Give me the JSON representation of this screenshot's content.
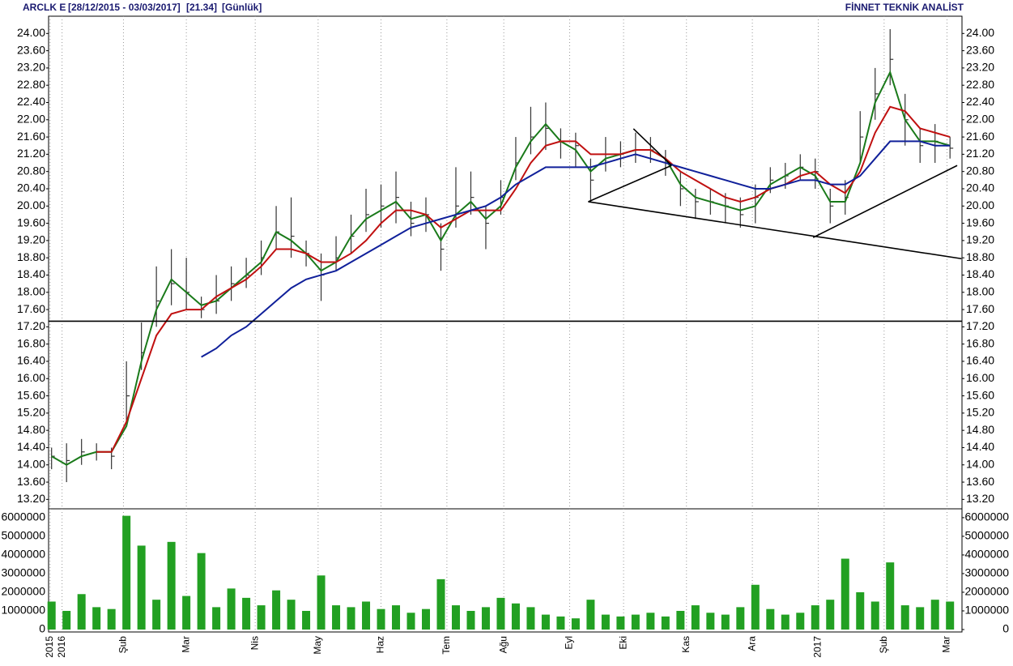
{
  "chart_data": {
    "type": "ohlc",
    "header": {
      "symbol": "ARCLK E",
      "range": "[28/12/2015 - 03/03/2017]",
      "last": "[21.34]",
      "period": "[Günlük]",
      "brand": "FİNNET TEKNİK ANALİST"
    },
    "x": [
      0,
      5,
      10,
      15,
      20,
      25,
      30,
      35,
      40,
      45,
      50,
      55,
      60,
      65,
      70,
      75,
      80,
      85,
      90,
      95,
      100,
      105,
      110,
      115,
      120,
      125,
      130,
      135,
      140,
      145,
      150,
      155,
      160,
      165,
      170,
      175,
      180,
      185,
      190,
      195,
      200,
      205,
      210,
      215,
      220,
      225,
      230,
      235,
      240,
      245,
      250,
      255,
      260,
      265,
      270,
      275,
      280,
      285,
      290,
      295,
      300
    ],
    "high": [
      14.4,
      14.5,
      14.6,
      14.5,
      14.4,
      16.4,
      17.3,
      18.6,
      19.0,
      18.8,
      17.9,
      18.4,
      18.6,
      18.8,
      19.2,
      20.0,
      20.2,
      19.2,
      18.9,
      19.3,
      19.8,
      20.4,
      20.5,
      20.8,
      20.1,
      20.2,
      19.6,
      20.9,
      20.8,
      20.0,
      20.6,
      21.6,
      22.3,
      22.4,
      21.8,
      21.7,
      21.1,
      21.6,
      21.5,
      21.7,
      21.6,
      21.3,
      20.8,
      20.4,
      20.4,
      20.3,
      20.2,
      20.5,
      20.9,
      21.0,
      21.2,
      21.1,
      20.4,
      20.6,
      22.2,
      23.2,
      24.1,
      22.6,
      21.8,
      21.9,
      21.6
    ],
    "low": [
      13.9,
      13.6,
      14.0,
      14.1,
      13.9,
      15.0,
      16.2,
      17.2,
      17.7,
      17.6,
      17.4,
      17.5,
      17.8,
      18.1,
      18.4,
      19.0,
      18.8,
      18.6,
      17.8,
      18.5,
      18.9,
      19.4,
      19.5,
      19.6,
      19.3,
      19.4,
      18.5,
      19.5,
      19.8,
      19.0,
      19.8,
      20.6,
      21.2,
      21.3,
      21.1,
      20.9,
      20.1,
      20.8,
      20.9,
      21.0,
      21.0,
      20.7,
      20.0,
      19.7,
      19.8,
      19.6,
      19.5,
      19.6,
      20.3,
      20.4,
      20.6,
      20.4,
      19.6,
      19.8,
      21.0,
      22.0,
      22.8,
      21.4,
      21.0,
      21.0,
      21.1
    ],
    "close": [
      14.2,
      14.1,
      14.3,
      14.3,
      14.2,
      15.6,
      16.6,
      17.8,
      18.2,
      18.0,
      17.6,
      17.8,
      18.2,
      18.4,
      18.8,
      19.4,
      19.3,
      18.9,
      18.4,
      18.8,
      19.3,
      19.8,
      20.0,
      20.2,
      19.6,
      19.8,
      19.0,
      20.0,
      20.2,
      19.6,
      20.2,
      21.0,
      21.6,
      21.8,
      21.5,
      21.4,
      20.6,
      21.2,
      21.2,
      21.3,
      21.3,
      21.0,
      20.4,
      20.1,
      20.1,
      20.0,
      19.8,
      20.2,
      20.6,
      20.7,
      20.9,
      20.8,
      20.0,
      20.2,
      21.6,
      22.6,
      23.4,
      22.0,
      21.4,
      21.5,
      21.34
    ],
    "bar_color": "#333333",
    "series": [
      {
        "color": "#1a7a1a",
        "values": [
          14.2,
          14.0,
          14.2,
          14.3,
          14.3,
          14.9,
          16.4,
          17.6,
          18.3,
          18.0,
          17.7,
          17.8,
          18.1,
          18.4,
          18.7,
          19.4,
          19.2,
          18.9,
          18.5,
          18.7,
          19.3,
          19.7,
          19.9,
          20.1,
          19.7,
          19.8,
          19.2,
          19.8,
          20.1,
          19.7,
          20.0,
          20.9,
          21.5,
          21.9,
          21.5,
          21.3,
          20.8,
          21.1,
          21.2,
          21.3,
          21.3,
          21.1,
          20.5,
          20.2,
          20.1,
          20.0,
          19.9,
          20.0,
          20.5,
          20.7,
          20.9,
          20.7,
          20.1,
          20.1,
          21.0,
          22.4,
          23.1,
          22.0,
          21.5,
          21.5,
          21.4
        ]
      },
      {
        "color": "#c01010",
        "values": [
          null,
          null,
          null,
          14.3,
          14.3,
          15.0,
          16.0,
          17.0,
          17.5,
          17.6,
          17.6,
          17.9,
          18.1,
          18.3,
          18.6,
          19.0,
          19.0,
          18.9,
          18.7,
          18.7,
          18.9,
          19.2,
          19.6,
          19.9,
          19.9,
          19.8,
          19.5,
          19.7,
          19.9,
          19.9,
          19.9,
          20.4,
          21.0,
          21.4,
          21.5,
          21.5,
          21.2,
          21.2,
          21.2,
          21.3,
          21.3,
          21.1,
          20.8,
          20.6,
          20.4,
          20.2,
          20.1,
          20.2,
          20.4,
          20.5,
          20.7,
          20.8,
          20.5,
          20.3,
          20.8,
          21.7,
          22.3,
          22.2,
          21.8,
          21.7,
          21.6
        ]
      },
      {
        "color": "#10209a",
        "values": [
          null,
          null,
          null,
          null,
          null,
          null,
          null,
          null,
          null,
          null,
          16.5,
          16.7,
          17.0,
          17.2,
          17.5,
          17.8,
          18.1,
          18.3,
          18.4,
          18.5,
          18.7,
          18.9,
          19.1,
          19.3,
          19.5,
          19.6,
          19.7,
          19.8,
          19.9,
          20.0,
          20.2,
          20.5,
          20.7,
          20.9,
          20.9,
          20.9,
          20.9,
          21.0,
          21.1,
          21.2,
          21.1,
          21.0,
          20.9,
          20.8,
          20.7,
          20.6,
          20.5,
          20.4,
          20.4,
          20.5,
          20.6,
          20.6,
          20.5,
          20.5,
          20.7,
          21.1,
          21.5,
          21.5,
          21.5,
          21.4,
          21.4
        ]
      }
    ],
    "trendlines": [
      {
        "x": [
          -1,
          304
        ],
        "y": [
          17.33,
          17.33
        ]
      },
      {
        "x": [
          179.2,
          303.8
        ],
        "y": [
          20.1,
          18.78
        ]
      },
      {
        "x": [
          179.2,
          207
        ],
        "y": [
          20.1,
          20.94
        ]
      },
      {
        "x": [
          194.3,
          207
        ],
        "y": [
          21.79,
          20.94
        ]
      },
      {
        "x": [
          254.3,
          302.4
        ],
        "y": [
          19.27,
          20.94
        ]
      }
    ],
    "xlim": [
      -1,
      304
    ],
    "xticks": [
      {
        "value": -0.5,
        "label": "2015"
      },
      {
        "value": 3.5,
        "label": "2016"
      },
      {
        "value": 24,
        "label": "Şub"
      },
      {
        "value": 45,
        "label": "Mar"
      },
      {
        "value": 68,
        "label": "Nis"
      },
      {
        "value": 89,
        "label": "May"
      },
      {
        "value": 110,
        "label": "Haz"
      },
      {
        "value": 132,
        "label": "Tem"
      },
      {
        "value": 151,
        "label": "Ağu"
      },
      {
        "value": 173,
        "label": "Eyl"
      },
      {
        "value": 191,
        "label": "Eki"
      },
      {
        "value": 212,
        "label": "Kas"
      },
      {
        "value": 234,
        "label": "Ara"
      },
      {
        "value": 256,
        "label": "2017"
      },
      {
        "value": 278,
        "label": "Şub"
      },
      {
        "value": 299,
        "label": "Mar"
      }
    ],
    "ylim": [
      13.0,
      24.4
    ],
    "yticks": [
      {
        "value": 13.2,
        "label": "13.20"
      },
      {
        "value": 13.6,
        "label": "13.60"
      },
      {
        "value": 14.0,
        "label": "14.00"
      },
      {
        "value": 14.4,
        "label": "14.40"
      },
      {
        "value": 14.8,
        "label": "14.80"
      },
      {
        "value": 15.2,
        "label": "15.20"
      },
      {
        "value": 15.6,
        "label": "15.60"
      },
      {
        "value": 16.0,
        "label": "16.00"
      },
      {
        "value": 16.4,
        "label": "16.40"
      },
      {
        "value": 16.8,
        "label": "16.80"
      },
      {
        "value": 17.2,
        "label": "17.20"
      },
      {
        "value": 17.6,
        "label": "17.60"
      },
      {
        "value": 18.0,
        "label": "18.00"
      },
      {
        "value": 18.4,
        "label": "18.40"
      },
      {
        "value": 18.8,
        "label": "18.80"
      },
      {
        "value": 19.2,
        "label": "19.20"
      },
      {
        "value": 19.6,
        "label": "19.60"
      },
      {
        "value": 20.0,
        "label": "20.00"
      },
      {
        "value": 20.4,
        "label": "20.40"
      },
      {
        "value": 20.8,
        "label": "20.80"
      },
      {
        "value": 21.2,
        "label": "21.20"
      },
      {
        "value": 21.6,
        "label": "21.60"
      },
      {
        "value": 22.0,
        "label": "22.00"
      },
      {
        "value": 22.4,
        "label": "22.40"
      },
      {
        "value": 22.8,
        "label": "22.80"
      },
      {
        "value": 23.2,
        "label": "23.20"
      },
      {
        "value": 23.6,
        "label": "23.60"
      },
      {
        "value": 24.0,
        "label": "24.00"
      }
    ],
    "volume": {
      "color": "#22a022",
      "values": [
        1500000,
        1000000,
        1900000,
        1200000,
        1100000,
        6100000,
        4500000,
        1600000,
        4700000,
        1800000,
        4100000,
        1200000,
        2200000,
        1700000,
        1300000,
        2100000,
        1600000,
        1000000,
        2900000,
        1300000,
        1200000,
        1500000,
        1100000,
        1300000,
        900000,
        1100000,
        2700000,
        1300000,
        1000000,
        1200000,
        1700000,
        1400000,
        1200000,
        800000,
        700000,
        600000,
        1600000,
        800000,
        700000,
        800000,
        900000,
        700000,
        1000000,
        1300000,
        900000,
        800000,
        1200000,
        2400000,
        1100000,
        800000,
        900000,
        1300000,
        1600000,
        3800000,
        2000000,
        1500000,
        3600000,
        1300000,
        1200000,
        1600000,
        1500000
      ],
      "ylim": [
        0,
        6300000
      ],
      "yticks": [
        0,
        1000000,
        2000000,
        3000000,
        4000000,
        5000000,
        6000000
      ]
    }
  }
}
